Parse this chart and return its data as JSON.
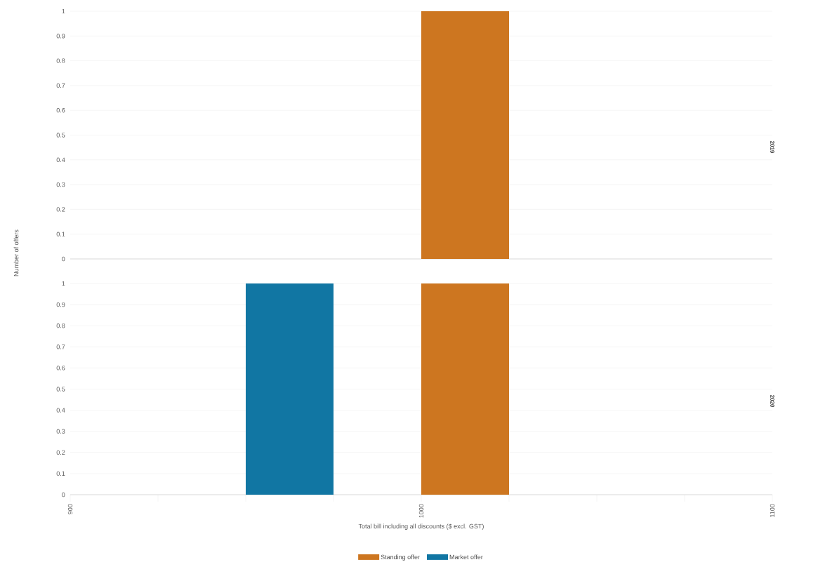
{
  "chart_data": [
    {
      "type": "histogram",
      "title": "2019",
      "ylabel": "Number of offers",
      "bins": [
        900,
        925,
        950,
        975,
        1000,
        1025,
        1050,
        1075,
        1100
      ],
      "xlim": [
        900,
        1100
      ],
      "ylim": [
        0,
        1
      ],
      "yticks": [
        0,
        0.1,
        0.2,
        0.3,
        0.4,
        0.5,
        0.6,
        0.7,
        0.8,
        0.9,
        1
      ],
      "grid": "y",
      "tick_labels": "y",
      "legend": false,
      "series": [
        {
          "color": "#cd7620",
          "values": [
            0,
            0,
            0,
            0,
            1,
            0,
            0,
            0
          ]
        }
      ]
    },
    {
      "type": "histogram",
      "title": "2020",
      "xlabel": "Total bill including all discounts ($ excl. GST)",
      "bins": [
        900,
        925,
        950,
        975,
        1000,
        1025,
        1050,
        1075,
        1100
      ],
      "xlim": [
        900,
        1100
      ],
      "ylim": [
        0,
        1
      ],
      "yticks": [
        0,
        0.1,
        0.2,
        0.3,
        0.4,
        0.5,
        0.6,
        0.7,
        0.8,
        0.9,
        1
      ],
      "xticks": [
        900,
        {
          "value": 925,
          "label": null
        },
        {
          "value": 950,
          "label": null
        },
        {
          "value": 975,
          "label": null
        },
        1000,
        {
          "value": 1025,
          "label": null
        },
        {
          "value": 1050,
          "label": null
        },
        {
          "value": 1075,
          "label": null
        },
        1100
      ],
      "grid": "y",
      "legend": "bottom",
      "series": [
        {
          "name": "Standing offer",
          "color": "#cd7620",
          "values": [
            0,
            0,
            0,
            0,
            1,
            0,
            0,
            0
          ]
        },
        {
          "name": "Market offer",
          "color": "#1176a3",
          "values": [
            0,
            0,
            1,
            0,
            0,
            0,
            0,
            0
          ]
        }
      ]
    }
  ]
}
